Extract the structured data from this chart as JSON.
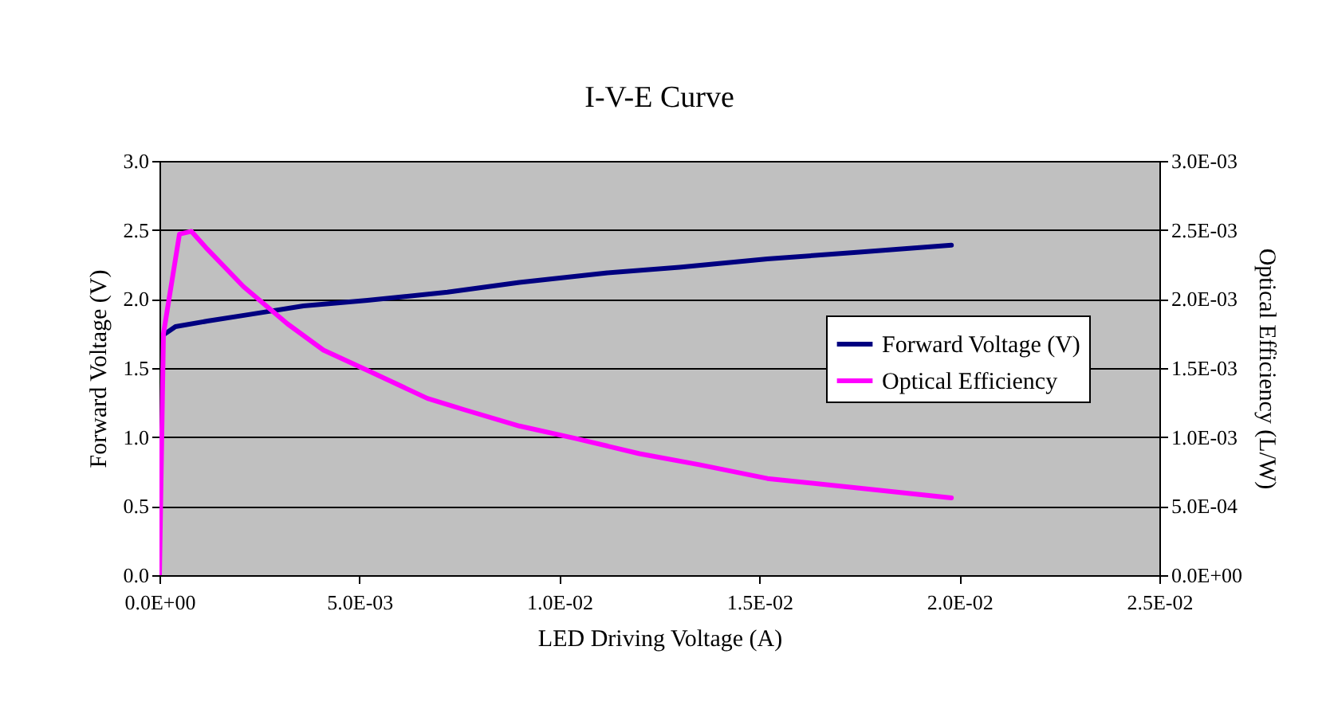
{
  "chart_data": {
    "type": "line",
    "title": "I-V-E Curve",
    "xlabel": "LED Driving Voltage (A)",
    "ylabel": "Forward Voltage (V)",
    "y2label": "Optical Efficiency (L/W)",
    "xlim": [
      0,
      0.025
    ],
    "xticks": [
      {
        "value": 0,
        "label": "0.0E+00"
      },
      {
        "value": 0.005,
        "label": "5.0E-03"
      },
      {
        "value": 0.01,
        "label": "1.0E-02"
      },
      {
        "value": 0.015,
        "label": "1.5E-02"
      },
      {
        "value": 0.02,
        "label": "2.0E-02"
      },
      {
        "value": 0.025,
        "label": "2.5E-02"
      }
    ],
    "ylim": [
      0,
      3
    ],
    "yticks": [
      {
        "value": 0,
        "label": "0.0"
      },
      {
        "value": 0.5,
        "label": "0.5"
      },
      {
        "value": 1,
        "label": "1.0"
      },
      {
        "value": 1.5,
        "label": "1.5"
      },
      {
        "value": 2,
        "label": "2.0"
      },
      {
        "value": 2.5,
        "label": "2.5"
      },
      {
        "value": 3,
        "label": "3.0"
      }
    ],
    "y2lim": [
      0,
      0.003
    ],
    "y2ticks": [
      {
        "value": 0,
        "label": "0.0E+00"
      },
      {
        "value": 0.0005,
        "label": "5.0E-04"
      },
      {
        "value": 0.001,
        "label": "1.0E-03"
      },
      {
        "value": 0.0015,
        "label": "1.5E-03"
      },
      {
        "value": 0.002,
        "label": "2.0E-03"
      },
      {
        "value": 0.0025,
        "label": "2.5E-03"
      },
      {
        "value": 0.003,
        "label": "3.0E-03"
      }
    ],
    "grid": "y",
    "legend": "right",
    "marker": "none",
    "line_style": "solid",
    "series": [
      {
        "name": "Forward Voltage (V)",
        "color": "#000080",
        "x": [
          0.0001,
          0.0004,
          0.0012,
          0.0023,
          0.0036,
          0.0052,
          0.0072,
          0.009,
          0.0112,
          0.013,
          0.0152,
          0.0175,
          0.0198
        ],
        "values": [
          1.74,
          1.8,
          1.84,
          1.89,
          1.95,
          1.99,
          2.05,
          2.12,
          2.19,
          2.23,
          2.29,
          2.34,
          2.39
        ]
      },
      {
        "name": "Optical Efficiency",
        "color": "#ff00ff",
        "axis": "y2",
        "x": [
          0,
          0.0001,
          0.0005,
          0.0008,
          0.0012,
          0.0021,
          0.0032,
          0.0041,
          0.0053,
          0.0067,
          0.0076,
          0.009,
          0.0104,
          0.012,
          0.0135,
          0.0152,
          0.0175,
          0.0198
        ],
        "values": [
          0,
          0.00175,
          0.00247,
          0.00249,
          0.00236,
          0.00209,
          0.00182,
          0.00163,
          0.00147,
          0.00128,
          0.0012,
          0.00108,
          0.00099,
          0.00088,
          0.0008,
          0.0007,
          0.00063,
          0.00056
        ]
      }
    ]
  }
}
